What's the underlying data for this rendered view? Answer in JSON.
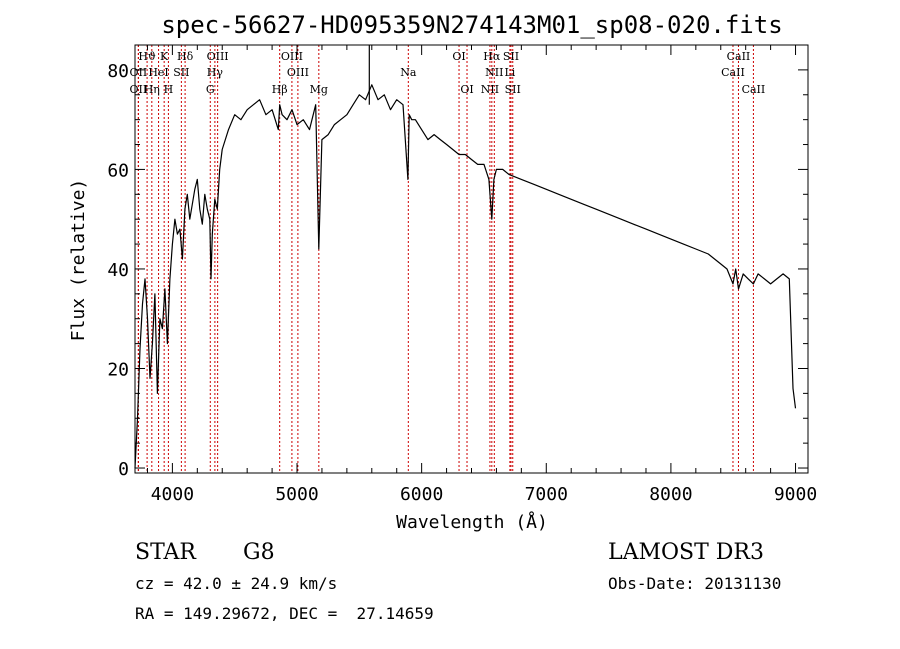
{
  "chart_data": {
    "type": "line",
    "title": "spec-56627-HD095359N274143M01_sp08-020.fits",
    "xlabel": "Wavelength (Å)",
    "ylabel": "Flux (relative)",
    "xlim": [
      3700,
      9100
    ],
    "ylim": [
      -1,
      85
    ],
    "xticks": [
      4000,
      5000,
      6000,
      7000,
      8000,
      9000
    ],
    "yticks": [
      0,
      20,
      40,
      60,
      80
    ],
    "series": [
      {
        "name": "spectrum",
        "x": [
          3700,
          3720,
          3740,
          3760,
          3780,
          3800,
          3820,
          3840,
          3860,
          3880,
          3900,
          3920,
          3940,
          3960,
          3980,
          4000,
          4020,
          4040,
          4060,
          4080,
          4100,
          4120,
          4140,
          4160,
          4180,
          4200,
          4220,
          4240,
          4260,
          4280,
          4300,
          4310,
          4320,
          4340,
          4360,
          4380,
          4400,
          4450,
          4500,
          4550,
          4600,
          4650,
          4700,
          4750,
          4800,
          4850,
          4861,
          4880,
          4920,
          4960,
          5000,
          5050,
          5100,
          5150,
          5175,
          5200,
          5250,
          5300,
          5350,
          5400,
          5450,
          5500,
          5550,
          5600,
          5650,
          5700,
          5750,
          5800,
          5850,
          5890,
          5900,
          5920,
          5950,
          6000,
          6050,
          6100,
          6150,
          6200,
          6250,
          6300,
          6350,
          6400,
          6450,
          6500,
          6540,
          6563,
          6580,
          6600,
          6650,
          6700,
          6800,
          6900,
          7000,
          7100,
          7200,
          7300,
          7400,
          7500,
          7600,
          7700,
          7800,
          7900,
          8000,
          8100,
          8200,
          8300,
          8400,
          8450,
          8498,
          8520,
          8542,
          8580,
          8620,
          8662,
          8700,
          8750,
          8800,
          8850,
          8900,
          8950,
          8980,
          9000
        ],
        "values": [
          0,
          10,
          24,
          33,
          38,
          30,
          18,
          25,
          35,
          15,
          30,
          28,
          36,
          25,
          38,
          45,
          50,
          47,
          48,
          42,
          52,
          55,
          50,
          53,
          56,
          58,
          52,
          49,
          55,
          52,
          50,
          38,
          47,
          54,
          52,
          60,
          64,
          68,
          71,
          70,
          72,
          73,
          74,
          71,
          72,
          68,
          73,
          71,
          70,
          72,
          69,
          70,
          68,
          73,
          44,
          66,
          67,
          69,
          70,
          71,
          73,
          75,
          74,
          77,
          74,
          75,
          72,
          74,
          73,
          58,
          71,
          70,
          70,
          68,
          66,
          67,
          66,
          65,
          64,
          63,
          63,
          62,
          61,
          61,
          58,
          50,
          58,
          60,
          60,
          59,
          58,
          57,
          56,
          55,
          54,
          53,
          52,
          51,
          50,
          49,
          48,
          47,
          46,
          45,
          44,
          43,
          41,
          40,
          37,
          40,
          36,
          39,
          38,
          37,
          39,
          38,
          37,
          38,
          39,
          38,
          16,
          12
        ]
      }
    ],
    "spike": {
      "x": 5580,
      "to": 85
    },
    "lines": [
      {
        "label": "Hϑ",
        "x": 3797,
        "row": 0
      },
      {
        "label": "K",
        "x": 3934,
        "row": 0
      },
      {
        "label": "Hδ",
        "x": 4102,
        "row": 0
      },
      {
        "label": "OIII",
        "x": 4363,
        "row": 0
      },
      {
        "label": "OIII",
        "x": 4959,
        "row": 0
      },
      {
        "label": "OI",
        "x": 6300,
        "row": 0
      },
      {
        "label": "Hα",
        "x": 6563,
        "row": 0
      },
      {
        "label": "SII",
        "x": 6717,
        "row": 0
      },
      {
        "label": "CaII",
        "x": 8542,
        "row": 0
      },
      {
        "label": "OII",
        "x": 3727,
        "row": 1
      },
      {
        "label": "HeI",
        "x": 3889,
        "row": 1
      },
      {
        "label": "SII",
        "x": 4072,
        "row": 1
      },
      {
        "label": "Hγ",
        "x": 4341,
        "row": 1
      },
      {
        "label": "OIII",
        "x": 5007,
        "row": 1
      },
      {
        "label": "Na",
        "x": 5893,
        "row": 1
      },
      {
        "label": "NII",
        "x": 6583,
        "row": 1
      },
      {
        "label": "Li",
        "x": 6708,
        "row": 1
      },
      {
        "label": "CaII",
        "x": 8498,
        "row": 1
      },
      {
        "label": "OII",
        "x": 3727,
        "row": 2
      },
      {
        "label": "Hη",
        "x": 3835,
        "row": 2
      },
      {
        "label": "H",
        "x": 3968,
        "row": 2
      },
      {
        "label": "G",
        "x": 4304,
        "row": 2
      },
      {
        "label": "Hβ",
        "x": 4861,
        "row": 2
      },
      {
        "label": "Mg",
        "x": 5175,
        "row": 2
      },
      {
        "label": "OI",
        "x": 6364,
        "row": 2
      },
      {
        "label": "NII",
        "x": 6548,
        "row": 2
      },
      {
        "label": "SII",
        "x": 6731,
        "row": 2
      },
      {
        "label": "CaII",
        "x": 8662,
        "row": 2
      }
    ]
  },
  "info": {
    "object_class": "STAR",
    "subclass": "G8",
    "survey": "LAMOST DR3",
    "cz": "cz = 42.0 ± 24.9 km/s",
    "obs_date": "Obs-Date: 20131130",
    "coords": "RA = 149.29672, DEC =  27.14659"
  },
  "colors": {
    "spectrum": "#000000",
    "lines": "#cc0000",
    "axes": "#000000"
  }
}
